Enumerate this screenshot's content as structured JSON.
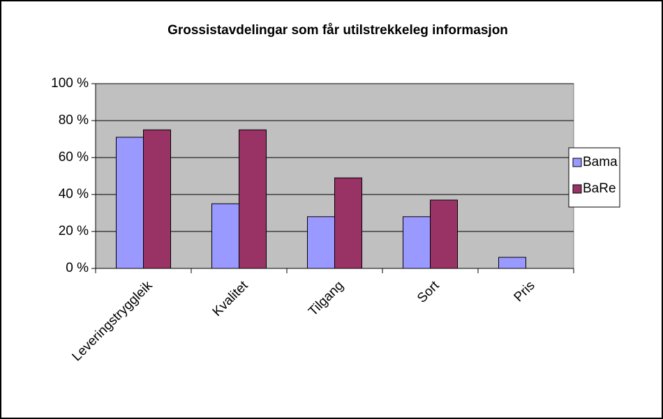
{
  "chart_data": {
    "type": "bar",
    "title": "Grossistavdelingar som får utilstrekkeleg informasjon",
    "categories": [
      "Leveringstryggleik",
      "Kvalitet",
      "Tilgang",
      "Sort",
      "Pris"
    ],
    "series": [
      {
        "name": "Bama",
        "color": "#9999ff",
        "values": [
          71,
          35,
          28,
          28,
          6
        ]
      },
      {
        "name": "BaRe",
        "color": "#993366",
        "values": [
          75,
          75,
          49,
          37,
          0
        ]
      }
    ],
    "ylim": [
      0,
      100
    ],
    "yticks": [
      {
        "value": 0,
        "label": "0 %"
      },
      {
        "value": 20,
        "label": "20 %"
      },
      {
        "value": 40,
        "label": "40 %"
      },
      {
        "value": 60,
        "label": "60 %"
      },
      {
        "value": 80,
        "label": "80 %"
      },
      {
        "value": 100,
        "label": "100 %"
      }
    ],
    "grid": true,
    "legend": "right",
    "plot_background": "#c0c0c0"
  }
}
